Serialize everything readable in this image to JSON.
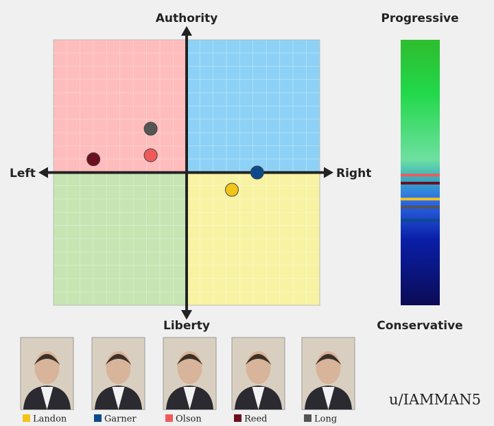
{
  "chart_data": {
    "type": "scatter",
    "top_label": "Authority",
    "bottom_label": "Liberty",
    "left_label": "Left",
    "right_label": "Right",
    "xlim": [
      -10,
      10
    ],
    "ylim": [
      -10,
      10
    ],
    "grid": true,
    "quadrant_colors": [
      "#ffbcbc",
      "#8dd2f6",
      "#c6e5b3",
      "#f7f3a3"
    ],
    "scale_top": "Progressive",
    "scale_bottom": "Conservative",
    "scale_lim": [
      0,
      100
    ],
    "series": [
      {
        "name": "Landon",
        "color": "#f2c318",
        "x": [
          3.4
        ],
        "values": [
          -1.3
        ],
        "scale_value": 60
      },
      {
        "name": "Garner",
        "color": "#0b4a8c",
        "x": [
          5.3
        ],
        "values": [
          0
        ],
        "scale_value": 68
      },
      {
        "name": "Olson",
        "color": "#f05a5a",
        "x": [
          -2.7
        ],
        "values": [
          1.3
        ],
        "scale_value": 51
      },
      {
        "name": "Reed",
        "color": "#6b1020",
        "x": [
          -7.0
        ],
        "values": [
          1.0
        ],
        "scale_value": 54
      },
      {
        "name": "Long",
        "color": "#555555",
        "x": [
          -2.7
        ],
        "values": [
          3.3
        ],
        "scale_value": 63
      }
    ],
    "credit": "u/IAMMAN5"
  }
}
